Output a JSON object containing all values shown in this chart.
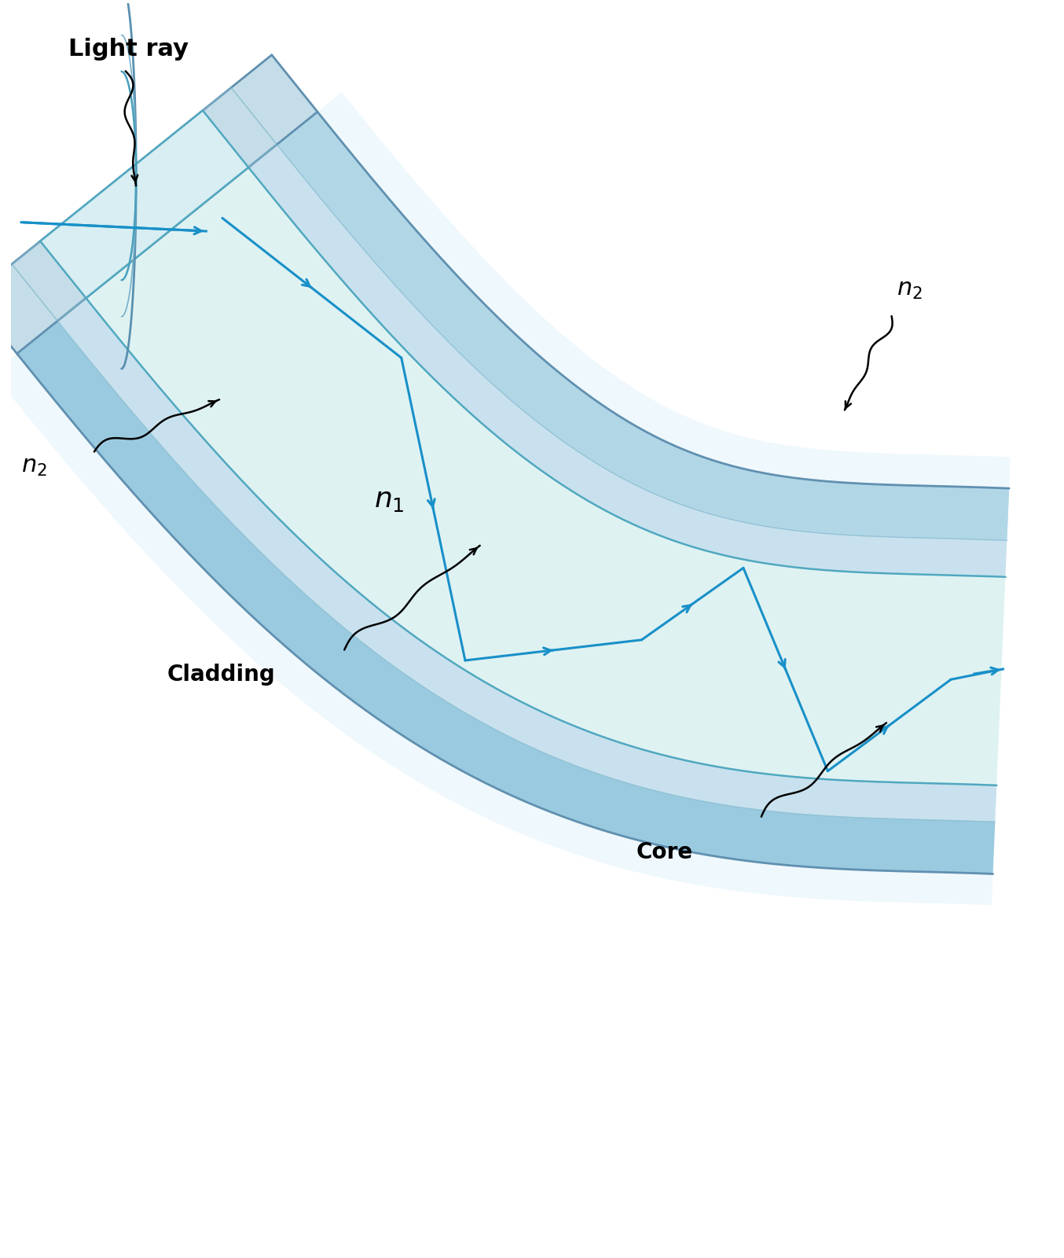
{
  "bg_color": "#ffffff",
  "core_fill": "#ddf2f2",
  "cladding_inner_fill": "#c8e4ee",
  "cladding_outer_fill": "#a8ccde",
  "cladding_bright": "#c0dff0",
  "outer_edge_fill": "#e8f4fa",
  "core_line": "#50a8c0",
  "clad_inner_line": "#78b8d0",
  "clad_outer_line": "#6090b0",
  "light_ray_color": "#1890c8",
  "arrow_color": "#000000",
  "label_color": "#000000",
  "title": "Light ray",
  "label_n1": "$n_1$",
  "label_n2": "$n_2$",
  "label_cladding": "Cladding",
  "label_core": "Core",
  "figsize": [
    13.54,
    16.0
  ],
  "dpi": 100
}
